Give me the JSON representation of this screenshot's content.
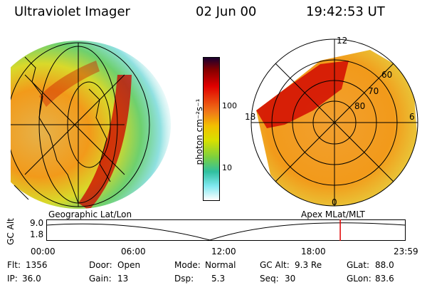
{
  "header": {
    "title": "Ultraviolet Imager",
    "date": "02 Jun 00",
    "time": "19:42:53 UT"
  },
  "colorbar": {
    "unit_label": "photon cm⁻²s⁻¹",
    "ticks": [
      "100",
      "10"
    ]
  },
  "polar_map": {
    "latitude_labels": [
      "80",
      "70",
      "60"
    ],
    "mlt_labels": [
      "12",
      "6",
      "0",
      "18"
    ]
  },
  "projection_labels": {
    "left": "Geographic Lat/Lon",
    "right": "Apex MLat/MLT"
  },
  "orbit_plot": {
    "ylabel": "GC Alt",
    "ytick_top": "9.0",
    "ytick_bottom": "1.8",
    "time_ticks": [
      "00:00",
      "06:00",
      "12:00",
      "18:00",
      "23:59"
    ],
    "current_time_fraction": 0.818
  },
  "footer": {
    "flt_label": "Flt:",
    "flt_value": "1356",
    "ip_label": "IP:",
    "ip_value": "36.0",
    "door_label": "Door:",
    "door_value": "Open",
    "gain_label": "Gain:",
    "gain_value": "13",
    "mode_label": "Mode:",
    "mode_value": "Normal",
    "dsp_label": "Dsp:",
    "dsp_value": "5.3",
    "gcalt_label": "GC Alt:",
    "gcalt_value": "9.3 Re",
    "seq_label": "Seq:",
    "seq_value": "30",
    "glat_label": "GLat:",
    "glat_value": "88.0",
    "glon_label": "GLon:",
    "glon_value": "83.6"
  },
  "colors": {
    "marker": "#e00000",
    "dark_red": "#cc0000",
    "orange": "#f29a1a",
    "yellow": "#e6e600",
    "green": "#3cc43c",
    "cyan": "#33cccc"
  }
}
